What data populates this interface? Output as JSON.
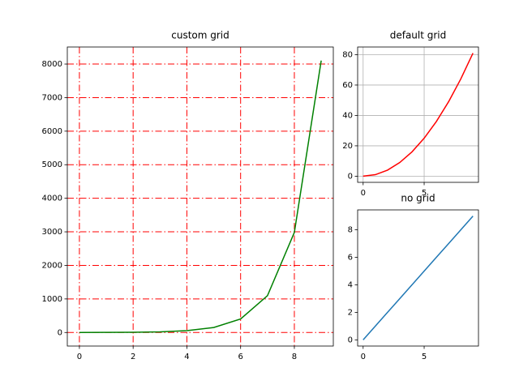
{
  "chart_data": [
    {
      "type": "line",
      "title": "custom grid",
      "x": [
        0,
        1,
        2,
        3,
        4,
        5,
        6,
        7,
        8,
        9
      ],
      "values": [
        1,
        3,
        7,
        20,
        55,
        148,
        403,
        1097,
        2981,
        8103
      ],
      "color": "#008000",
      "xlim": [
        -0.45,
        9.45
      ],
      "xticks": [
        0,
        2,
        4,
        6,
        8
      ],
      "ylim": [
        -404,
        8508
      ],
      "yticks": [
        0,
        1000,
        2000,
        3000,
        4000,
        5000,
        6000,
        7000,
        8000
      ],
      "grid": true,
      "grid_color": "#ff0000",
      "grid_linestyle": "dashdot"
    },
    {
      "type": "line",
      "title": "default grid",
      "x": [
        0,
        1,
        2,
        3,
        4,
        5,
        6,
        7,
        8,
        9
      ],
      "values": [
        0,
        1,
        4,
        9,
        16,
        25,
        36,
        49,
        64,
        81
      ],
      "color": "#ff0000",
      "xlim": [
        -0.45,
        9.45
      ],
      "xticks": [
        0,
        5
      ],
      "ylim": [
        -4.05,
        85.05
      ],
      "yticks": [
        0,
        20,
        40,
        60,
        80
      ],
      "grid": true,
      "grid_color": "#b0b0b0",
      "grid_linestyle": "solid"
    },
    {
      "type": "line",
      "title": "no grid",
      "x": [
        0,
        1,
        2,
        3,
        4,
        5,
        6,
        7,
        8,
        9
      ],
      "values": [
        0,
        1,
        2,
        3,
        4,
        5,
        6,
        7,
        8,
        9
      ],
      "color": "#1f77b4",
      "xlim": [
        -0.45,
        9.45
      ],
      "xticks": [
        0,
        5
      ],
      "ylim": [
        -0.45,
        9.45
      ],
      "yticks": [
        0,
        2,
        4,
        6,
        8
      ],
      "grid": false
    }
  ]
}
